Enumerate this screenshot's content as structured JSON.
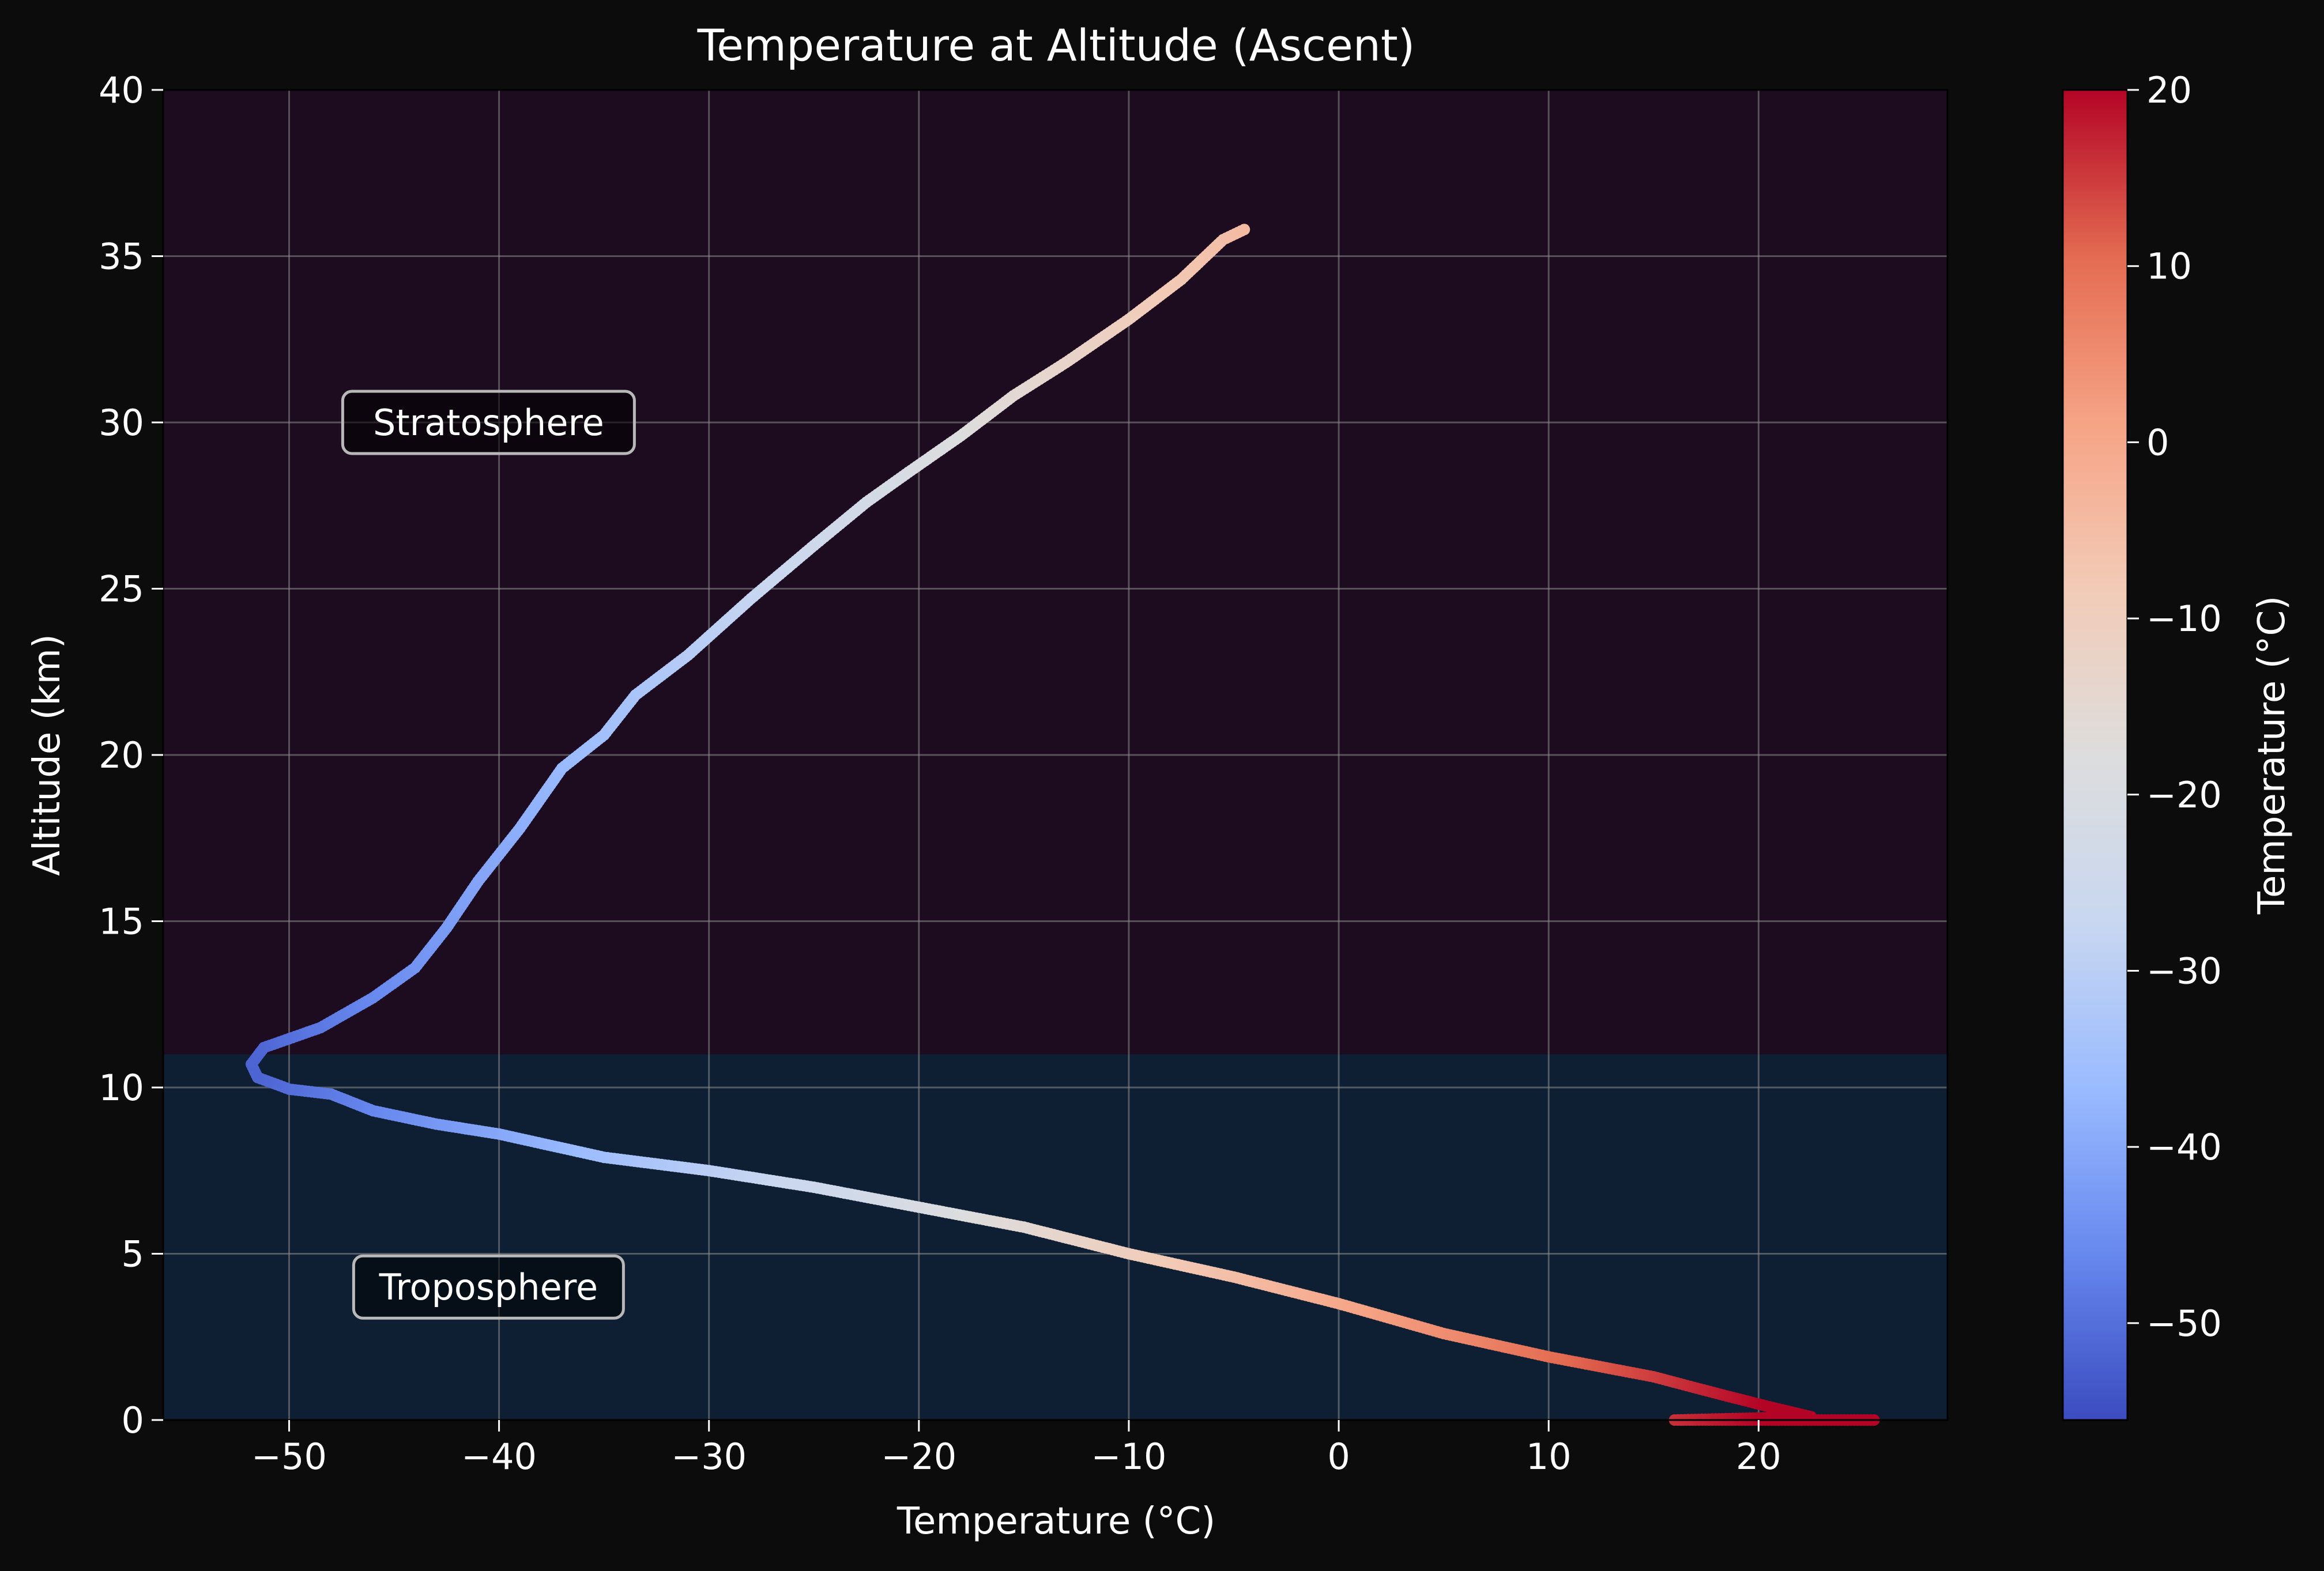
{
  "page": {
    "background": "#0c0c0d"
  },
  "chart_data": {
    "type": "scatter",
    "title": "Temperature at Altitude (Ascent)",
    "xlabel": "Temperature (°C)",
    "ylabel": "Altitude (km)",
    "xlim": [
      -56,
      29
    ],
    "ylim": [
      0,
      40
    ],
    "x_ticks": [
      -50,
      -40,
      -30,
      -20,
      -10,
      0,
      10,
      20
    ],
    "y_ticks": [
      0,
      5,
      10,
      15,
      20,
      25,
      30,
      35,
      40
    ],
    "grid": true,
    "regions": [
      {
        "label": "Troposphere",
        "from_km": 0,
        "to_km": 11,
        "color": "#0f1f33",
        "label_at": [
          -40.5,
          4
        ]
      },
      {
        "label": "Stratosphere",
        "from_km": 11,
        "to_km": 40,
        "color": "#1d0c20",
        "label_at": [
          -40.5,
          30
        ]
      }
    ],
    "colorbar": {
      "label": "Temperature (°C)",
      "colormap": "coolwarm",
      "range": [
        -55.5,
        20
      ],
      "ticks": [
        -50,
        -40,
        -30,
        -20,
        -10,
        0,
        10,
        20
      ],
      "stops": [
        "#3b4cc0",
        "#6788ee",
        "#9abbff",
        "#c9d7f0",
        "#dddddd",
        "#f2cbb7",
        "#f6a385",
        "#e36b51",
        "#b40426"
      ]
    },
    "series": [
      {
        "points": [
          [
            25.5,
            0.0
          ],
          [
            23.0,
            0.0
          ],
          [
            20.0,
            0.0
          ],
          [
            17.0,
            0.0
          ],
          [
            16.0,
            0.0
          ],
          [
            22.5,
            0.1
          ],
          [
            20.5,
            0.4
          ],
          [
            18.0,
            0.8
          ],
          [
            15.0,
            1.3
          ],
          [
            10.0,
            1.9
          ],
          [
            5.0,
            2.6
          ],
          [
            0.0,
            3.5
          ],
          [
            -5.0,
            4.3
          ],
          [
            -10.0,
            5.0
          ],
          [
            -15.0,
            5.8
          ],
          [
            -20.0,
            6.4
          ],
          [
            -25.0,
            7.0
          ],
          [
            -30.0,
            7.5
          ],
          [
            -35.0,
            7.9
          ],
          [
            -40.0,
            8.6
          ],
          [
            -43.0,
            8.9
          ],
          [
            -46.0,
            9.3
          ],
          [
            -48.0,
            9.8
          ],
          [
            -50.0,
            9.95
          ],
          [
            -51.5,
            10.3
          ],
          [
            -51.8,
            10.7
          ],
          [
            -51.2,
            11.2
          ],
          [
            -48.5,
            11.8
          ],
          [
            -46.0,
            12.7
          ],
          [
            -44.0,
            13.6
          ],
          [
            -42.5,
            14.8
          ],
          [
            -41.0,
            16.2
          ],
          [
            -39.0,
            17.8
          ],
          [
            -37.0,
            19.6
          ],
          [
            -35.0,
            20.6
          ],
          [
            -33.5,
            21.8
          ],
          [
            -31.0,
            23.0
          ],
          [
            -28.0,
            24.7
          ],
          [
            -25.0,
            26.3
          ],
          [
            -22.5,
            27.6
          ],
          [
            -20.5,
            28.5
          ],
          [
            -18.0,
            29.6
          ],
          [
            -15.5,
            30.8
          ],
          [
            -13.0,
            31.8
          ],
          [
            -10.0,
            33.1
          ],
          [
            -7.5,
            34.3
          ],
          [
            -5.5,
            35.5
          ],
          [
            -4.5,
            35.8
          ]
        ]
      }
    ]
  }
}
